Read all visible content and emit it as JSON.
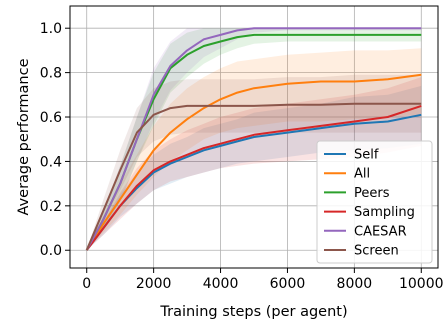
{
  "chart_data": {
    "type": "line",
    "xlabel": "Training steps (per agent)",
    "ylabel": "Average performance",
    "xlim": [
      -500,
      10500
    ],
    "ylim": [
      -0.08,
      1.1
    ],
    "xticks": [
      0,
      2000,
      4000,
      6000,
      8000,
      10000
    ],
    "xtick_labels": [
      "0",
      "2000",
      "4000",
      "6000",
      "8000",
      "10000"
    ],
    "yticks": [
      0.0,
      0.2,
      0.4,
      0.6,
      0.8,
      1.0
    ],
    "ytick_labels": [
      "0.0",
      "0.2",
      "0.4",
      "0.6",
      "0.8",
      "1.0"
    ],
    "grid": true,
    "legend_position": "lower-right",
    "x": [
      0,
      500,
      1000,
      1500,
      2000,
      2500,
      3000,
      3500,
      4000,
      4500,
      5000,
      6000,
      7000,
      8000,
      9000,
      10000
    ],
    "series": [
      {
        "name": "Self",
        "color": "#1f77b4",
        "values": [
          0.0,
          0.1,
          0.2,
          0.28,
          0.35,
          0.39,
          0.42,
          0.45,
          0.47,
          0.49,
          0.51,
          0.53,
          0.55,
          0.57,
          0.58,
          0.61
        ],
        "lower": [
          0.0,
          0.07,
          0.15,
          0.21,
          0.27,
          0.3,
          0.33,
          0.35,
          0.37,
          0.39,
          0.4,
          0.42,
          0.44,
          0.45,
          0.46,
          0.48
        ],
        "upper": [
          0.0,
          0.13,
          0.25,
          0.35,
          0.43,
          0.48,
          0.51,
          0.55,
          0.57,
          0.59,
          0.62,
          0.64,
          0.66,
          0.69,
          0.7,
          0.74
        ]
      },
      {
        "name": "All",
        "color": "#ff7f0e",
        "values": [
          0.0,
          0.12,
          0.23,
          0.34,
          0.45,
          0.53,
          0.59,
          0.64,
          0.68,
          0.71,
          0.73,
          0.75,
          0.76,
          0.76,
          0.77,
          0.79
        ],
        "lower": [
          0.0,
          0.08,
          0.16,
          0.25,
          0.33,
          0.4,
          0.45,
          0.5,
          0.53,
          0.55,
          0.56,
          0.58,
          0.58,
          0.59,
          0.6,
          0.61
        ],
        "upper": [
          0.0,
          0.16,
          0.3,
          0.43,
          0.56,
          0.66,
          0.73,
          0.78,
          0.82,
          0.85,
          0.86,
          0.88,
          0.89,
          0.9,
          0.9,
          0.91
        ]
      },
      {
        "name": "Peers",
        "color": "#2ca02c",
        "values": [
          0.0,
          0.14,
          0.3,
          0.5,
          0.68,
          0.82,
          0.88,
          0.92,
          0.94,
          0.96,
          0.97,
          0.97,
          0.97,
          0.97,
          0.97,
          0.97
        ],
        "lower": [
          0.0,
          0.1,
          0.22,
          0.4,
          0.56,
          0.71,
          0.78,
          0.84,
          0.88,
          0.91,
          0.93,
          0.94,
          0.94,
          0.94,
          0.94,
          0.94
        ],
        "upper": [
          0.0,
          0.18,
          0.38,
          0.6,
          0.8,
          0.93,
          0.98,
          1.0,
          1.0,
          1.0,
          1.0,
          1.0,
          1.0,
          1.0,
          1.0,
          1.0
        ]
      },
      {
        "name": "Sampling",
        "color": "#d62728",
        "values": [
          0.0,
          0.1,
          0.2,
          0.29,
          0.36,
          0.4,
          0.43,
          0.46,
          0.48,
          0.5,
          0.52,
          0.54,
          0.56,
          0.58,
          0.6,
          0.65
        ],
        "lower": [
          0.0,
          0.07,
          0.14,
          0.21,
          0.27,
          0.31,
          0.33,
          0.35,
          0.37,
          0.38,
          0.39,
          0.4,
          0.41,
          0.42,
          0.44,
          0.47
        ],
        "upper": [
          0.0,
          0.13,
          0.26,
          0.37,
          0.45,
          0.5,
          0.54,
          0.57,
          0.6,
          0.62,
          0.64,
          0.66,
          0.68,
          0.7,
          0.73,
          0.78
        ]
      },
      {
        "name": "CAESAR",
        "color": "#9467bd",
        "values": [
          0.0,
          0.14,
          0.3,
          0.5,
          0.7,
          0.83,
          0.9,
          0.95,
          0.97,
          0.99,
          1.0,
          1.0,
          1.0,
          1.0,
          1.0,
          1.0
        ],
        "lower": [
          0.0,
          0.1,
          0.22,
          0.4,
          0.58,
          0.72,
          0.8,
          0.87,
          0.91,
          0.95,
          0.98,
          0.99,
          0.99,
          0.99,
          0.99,
          0.99
        ],
        "upper": [
          0.0,
          0.18,
          0.38,
          0.6,
          0.82,
          0.94,
          1.0,
          1.0,
          1.0,
          1.0,
          1.0,
          1.0,
          1.0,
          1.0,
          1.0,
          1.0
        ]
      },
      {
        "name": "Screen",
        "color": "#8c564b",
        "values": [
          0.0,
          0.18,
          0.36,
          0.53,
          0.61,
          0.64,
          0.65,
          0.65,
          0.65,
          0.65,
          0.65,
          0.655,
          0.655,
          0.66,
          0.66,
          0.66
        ],
        "lower": [
          0.0,
          0.13,
          0.27,
          0.42,
          0.49,
          0.52,
          0.53,
          0.53,
          0.53,
          0.53,
          0.53,
          0.53,
          0.53,
          0.53,
          0.53,
          0.53
        ],
        "upper": [
          0.0,
          0.23,
          0.45,
          0.64,
          0.73,
          0.76,
          0.77,
          0.77,
          0.77,
          0.77,
          0.77,
          0.78,
          0.78,
          0.79,
          0.79,
          0.79
        ]
      }
    ]
  }
}
